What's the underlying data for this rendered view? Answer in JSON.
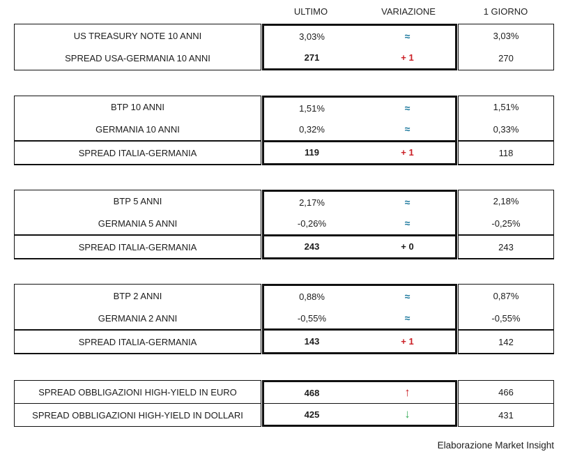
{
  "header": {
    "ultimo": "ULTIMO",
    "variazione": "VARIAZIONE",
    "giorno": "1 GIORNO"
  },
  "footer": {
    "credit": "Elaborazione Market Insight"
  },
  "colors": {
    "approx_teal": "#1f7a9e",
    "up_red": "#cb2026",
    "down_green": "#3bae5c",
    "text": "#1c1c1c",
    "border": "#111111",
    "background": "#ffffff"
  },
  "tables": [
    {
      "rows": [
        {
          "label": "US TREASURY NOTE 10 ANNI",
          "ultimo": "3,03%",
          "ultimo_bold": false,
          "variazione": "≈",
          "variazione_type": "approx",
          "giorno": "3,03%",
          "spread": false
        },
        {
          "label": "SPREAD USA-GERMANIA 10 ANNI",
          "ultimo": "271",
          "ultimo_bold": true,
          "variazione": "+ 1",
          "variazione_type": "up",
          "giorno": "270",
          "spread": false
        }
      ]
    },
    {
      "rows": [
        {
          "label": "BTP 10 ANNI",
          "ultimo": "1,51%",
          "ultimo_bold": false,
          "variazione": "≈",
          "variazione_type": "approx",
          "giorno": "1,51%",
          "spread": false
        },
        {
          "label": "GERMANIA 10 ANNI",
          "ultimo": "0,32%",
          "ultimo_bold": false,
          "variazione": "≈",
          "variazione_type": "approx",
          "giorno": "0,33%",
          "spread": false
        },
        {
          "label": "SPREAD ITALIA-GERMANIA",
          "ultimo": "119",
          "ultimo_bold": true,
          "variazione": "+ 1",
          "variazione_type": "up",
          "giorno": "118",
          "spread": true
        }
      ]
    },
    {
      "rows": [
        {
          "label": "BTP 5 ANNI",
          "ultimo": "2,17%",
          "ultimo_bold": false,
          "variazione": "≈",
          "variazione_type": "approx",
          "giorno": "2,18%",
          "spread": false
        },
        {
          "label": "GERMANIA 5 ANNI",
          "ultimo": "-0,26%",
          "ultimo_bold": false,
          "variazione": "≈",
          "variazione_type": "approx",
          "giorno": "-0,25%",
          "spread": false
        },
        {
          "label": "SPREAD ITALIA-GERMANIA",
          "ultimo": "243",
          "ultimo_bold": true,
          "variazione": "+ 0",
          "variazione_type": "zero",
          "giorno": "243",
          "spread": true
        }
      ]
    },
    {
      "rows": [
        {
          "label": "BTP 2 ANNI",
          "ultimo": "0,88%",
          "ultimo_bold": false,
          "variazione": "≈",
          "variazione_type": "approx",
          "giorno": "0,87%",
          "spread": false
        },
        {
          "label": "GERMANIA 2 ANNI",
          "ultimo": "-0,55%",
          "ultimo_bold": false,
          "variazione": "≈",
          "variazione_type": "approx",
          "giorno": "-0,55%",
          "spread": false
        },
        {
          "label": "SPREAD ITALIA-GERMANIA",
          "ultimo": "143",
          "ultimo_bold": true,
          "variazione": "+ 1",
          "variazione_type": "up",
          "giorno": "142",
          "spread": true
        }
      ]
    },
    {
      "rows": [
        {
          "label": "SPREAD OBBLIGAZIONI HIGH-YIELD IN EURO",
          "ultimo": "468",
          "ultimo_bold": true,
          "variazione": "↑",
          "variazione_type": "up",
          "giorno": "466",
          "spread": false
        },
        {
          "label": "SPREAD OBBLIGAZIONI HIGH-YIELD IN DOLLARI",
          "ultimo": "425",
          "ultimo_bold": true,
          "variazione": "↓",
          "variazione_type": "down",
          "giorno": "431",
          "spread": false
        }
      ]
    }
  ],
  "chart_data": {
    "type": "table",
    "columns": [
      "",
      "ULTIMO",
      "VARIAZIONE",
      "1 GIORNO"
    ],
    "rows": [
      [
        "US TREASURY NOTE 10 ANNI",
        "3,03%",
        "≈",
        "3,03%"
      ],
      [
        "SPREAD USA-GERMANIA 10 ANNI",
        "271",
        "+ 1",
        "270"
      ],
      [
        "BTP 10 ANNI",
        "1,51%",
        "≈",
        "1,51%"
      ],
      [
        "GERMANIA 10 ANNI",
        "0,32%",
        "≈",
        "0,33%"
      ],
      [
        "SPREAD ITALIA-GERMANIA",
        "119",
        "+ 1",
        "118"
      ],
      [
        "BTP 5 ANNI",
        "2,17%",
        "≈",
        "2,18%"
      ],
      [
        "GERMANIA 5 ANNI",
        "-0,26%",
        "≈",
        "-0,25%"
      ],
      [
        "SPREAD ITALIA-GERMANIA",
        "243",
        "+ 0",
        "243"
      ],
      [
        "BTP 2 ANNI",
        "0,88%",
        "≈",
        "0,87%"
      ],
      [
        "GERMANIA 2 ANNI",
        "-0,55%",
        "≈",
        "-0,55%"
      ],
      [
        "SPREAD ITALIA-GERMANIA",
        "143",
        "+ 1",
        "142"
      ],
      [
        "SPREAD OBBLIGAZIONI HIGH-YIELD IN EURO",
        "468",
        "↑",
        "466"
      ],
      [
        "SPREAD OBBLIGAZIONI HIGH-YIELD IN DOLLARI",
        "425",
        "↓",
        "431"
      ]
    ],
    "title": "",
    "annotations": [
      "Elaborazione Market Insight"
    ],
    "legend_position": "none",
    "grid": true
  }
}
